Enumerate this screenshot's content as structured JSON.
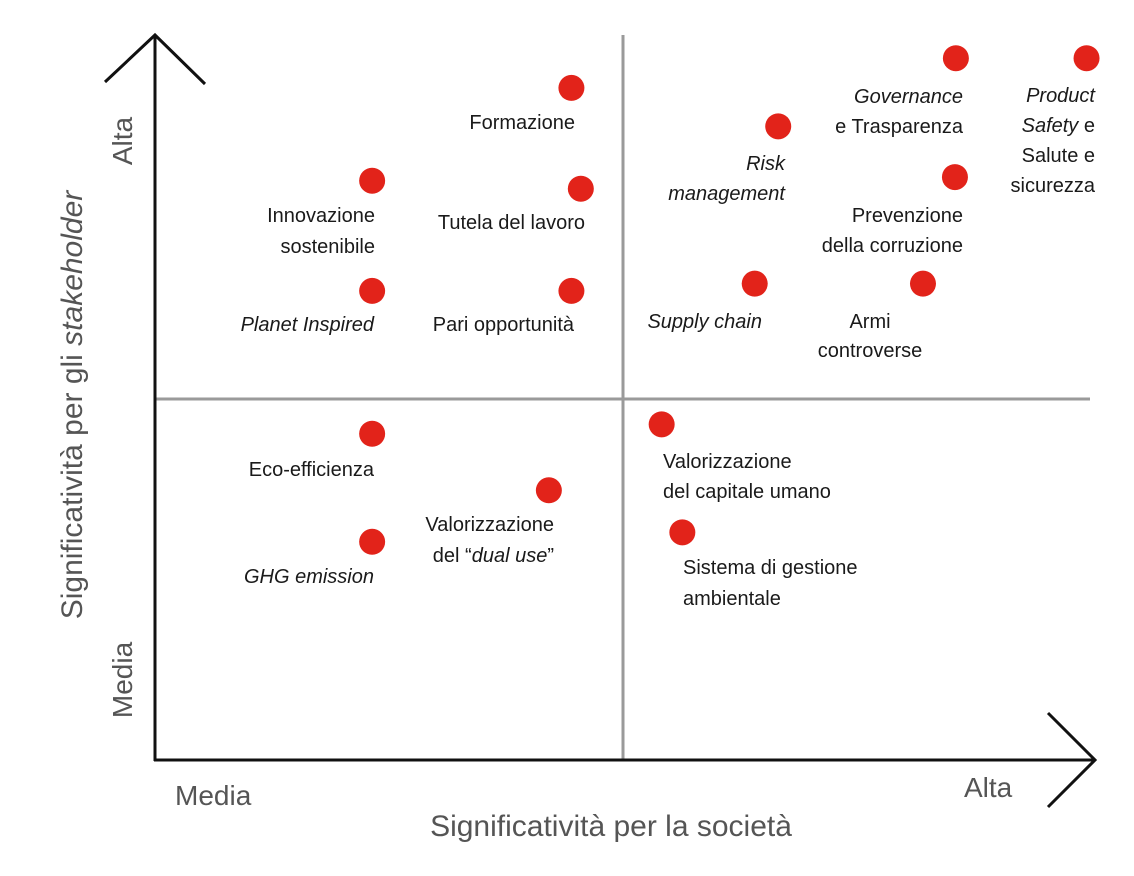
{
  "chart_data": {
    "type": "scatter",
    "color": "#e2231a",
    "xlim": [
      0,
      10
    ],
    "ylim": [
      0,
      10
    ],
    "xlabel": [
      {
        "t": "Significatività per la società"
      }
    ],
    "ylabel": [
      {
        "t": "Significatività per gli "
      },
      {
        "t": "stakeholder",
        "i": true
      }
    ],
    "x_ends": [
      "Media",
      "Alta"
    ],
    "y_ends": [
      "Media",
      "Alta"
    ],
    "points": [
      {
        "x": 4.43,
        "y": 9.27,
        "label": [
          [
            {
              "t": "Formazione"
            }
          ]
        ]
      },
      {
        "x": 2.31,
        "y": 7.99,
        "label": [
          [
            {
              "t": "Innovazione"
            }
          ],
          [
            {
              "t": "sostenibile"
            }
          ]
        ]
      },
      {
        "x": 4.53,
        "y": 7.88,
        "label": [
          [
            {
              "t": "Tutela del lavoro"
            }
          ]
        ]
      },
      {
        "x": 2.31,
        "y": 6.47,
        "label": [
          [
            {
              "t": "Planet Inspired",
              "i": true
            }
          ]
        ]
      },
      {
        "x": 4.43,
        "y": 6.47,
        "label": [
          [
            {
              "t": "Pari opportunità"
            }
          ]
        ]
      },
      {
        "x": 6.63,
        "y": 8.74,
        "label": [
          [
            {
              "t": "Risk",
              "i": true
            }
          ],
          [
            {
              "t": "management",
              "i": true
            }
          ]
        ]
      },
      {
        "x": 8.52,
        "y": 9.68,
        "label": [
          [
            {
              "t": "Governance",
              "i": true
            }
          ],
          [
            {
              "t": "e Trasparenza"
            }
          ]
        ]
      },
      {
        "x": 9.91,
        "y": 9.68,
        "label": [
          [
            {
              "t": "Product",
              "i": true
            }
          ],
          [
            {
              "t": "Safety",
              "i": true
            },
            {
              "t": " e"
            }
          ],
          [
            {
              "t": "Salute e"
            }
          ],
          [
            {
              "t": "sicurezza"
            }
          ]
        ]
      },
      {
        "x": 8.51,
        "y": 8.04,
        "label": [
          [
            {
              "t": "Prevenzione"
            }
          ],
          [
            {
              "t": "della corruzione"
            }
          ]
        ]
      },
      {
        "x": 6.38,
        "y": 6.57,
        "label": [
          [
            {
              "t": "Supply chain",
              "i": true
            }
          ]
        ]
      },
      {
        "x": 8.17,
        "y": 6.57,
        "label": [
          [
            {
              "t": "Armi"
            }
          ],
          [
            {
              "t": "controverse"
            }
          ]
        ]
      },
      {
        "x": 2.31,
        "y": 4.5,
        "label": [
          [
            {
              "t": "Eco-efficienza"
            }
          ]
        ]
      },
      {
        "x": 4.19,
        "y": 3.72,
        "label": [
          [
            {
              "t": "Valorizzazione"
            }
          ],
          [
            {
              "t": "del “"
            },
            {
              "t": "dual use",
              "i": true
            },
            {
              "t": "”"
            }
          ]
        ]
      },
      {
        "x": 2.31,
        "y": 3.01,
        "label": [
          [
            {
              "t": "GHG emission",
              "i": true
            }
          ]
        ]
      },
      {
        "x": 5.39,
        "y": 4.63,
        "label": [
          [
            {
              "t": "Valorizzazione"
            }
          ],
          [
            {
              "t": "del capitale umano"
            }
          ]
        ]
      },
      {
        "x": 5.61,
        "y": 3.14,
        "label": [
          [
            {
              "t": "Sistema di gestione"
            }
          ],
          [
            {
              "t": "ambientale"
            }
          ]
        ]
      }
    ]
  }
}
